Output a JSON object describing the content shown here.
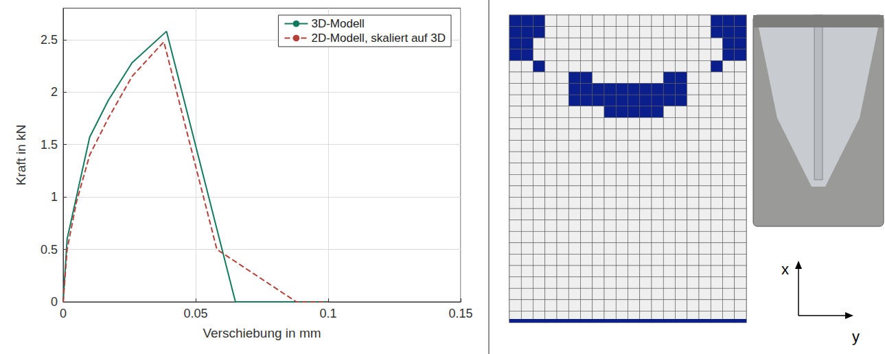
{
  "chart_data": {
    "type": "line",
    "x_label": "Verschiebung in mm",
    "y_label": "Kraft in kN",
    "xlim": [
      0,
      0.15
    ],
    "xticks": [
      0,
      0.05,
      0.1,
      0.15
    ],
    "ylim": [
      0,
      2.8
    ],
    "yticks": [
      0,
      0.5,
      1,
      1.5,
      2,
      2.5
    ],
    "grid": true,
    "legend": "top-right",
    "series": [
      {
        "name": "3D-Modell",
        "color": "#127a5f",
        "line_style": "solid",
        "x": [
          0,
          0.0015,
          0.005,
          0.01,
          0.017,
          0.026,
          0.039,
          0.065,
          0.1
        ],
        "values": [
          0,
          0.6,
          1.0,
          1.57,
          1.92,
          2.28,
          2.58,
          0,
          0
        ]
      },
      {
        "name": "2D-Modell, skaliert auf 3D",
        "color": "#b5403a",
        "line_style": "dashed",
        "x": [
          0,
          0.0015,
          0.005,
          0.01,
          0.017,
          0.026,
          0.038,
          0.058,
          0.088,
          0.1
        ],
        "values": [
          0,
          0.5,
          0.95,
          1.4,
          1.75,
          2.15,
          2.48,
          0.5,
          0,
          0
        ]
      }
    ]
  },
  "coordinate_system": {
    "vertical": "x",
    "horizontal": "y"
  }
}
